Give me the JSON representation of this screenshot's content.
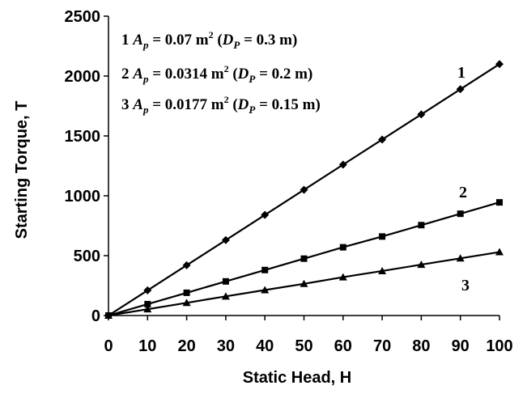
{
  "chart_data": {
    "type": "line",
    "xlabel": "Static Head, H",
    "ylabel": "Starting Torque, T",
    "xlim": [
      0,
      100
    ],
    "ylim": [
      0,
      2500
    ],
    "x_ticks": [
      "0",
      "10",
      "20",
      "30",
      "40",
      "50",
      "60",
      "70",
      "80",
      "90",
      "100"
    ],
    "y_ticks": [
      "0",
      "500",
      "1000",
      "1500",
      "2000",
      "2500"
    ],
    "grid": false,
    "x": [
      0,
      10,
      20,
      30,
      40,
      50,
      60,
      70,
      80,
      90,
      100
    ],
    "series": [
      {
        "name": "1",
        "marker": "diamond",
        "values": [
          0,
          210,
          420,
          630,
          840,
          1050,
          1260,
          1470,
          1680,
          1890,
          2100
        ]
      },
      {
        "name": "2",
        "marker": "square",
        "values": [
          0,
          95,
          190,
          285,
          380,
          475,
          570,
          660,
          755,
          850,
          945
        ]
      },
      {
        "name": "3",
        "marker": "triangle",
        "values": [
          0,
          53,
          106,
          160,
          213,
          265,
          320,
          372,
          425,
          478,
          530
        ]
      }
    ],
    "legend": [
      {
        "num": "1",
        "a_sym": "A",
        "a_sub": "p",
        "a_val": " = 0.07 m",
        "sup": "2",
        "d_open": " (",
        "d_sym": "D",
        "d_sub": "P",
        "d_val": " = 0.3 m)"
      },
      {
        "num": "2",
        "a_sym": "A",
        "a_sub": "p",
        "a_val": " = 0.0314 m",
        "sup": "2",
        "d_open": " (",
        "d_sym": "D",
        "d_sub": "P",
        "d_val": " = 0.2 m)"
      },
      {
        "num": "3",
        "a_sym": "A",
        "a_sub": "p",
        "a_val": " = 0.0177 m",
        "sup": "2",
        "d_open": " (",
        "d_sym": "D",
        "d_sub": "P",
        "d_val": " = 0.15 m)"
      }
    ],
    "legend_placement": "top-left"
  }
}
